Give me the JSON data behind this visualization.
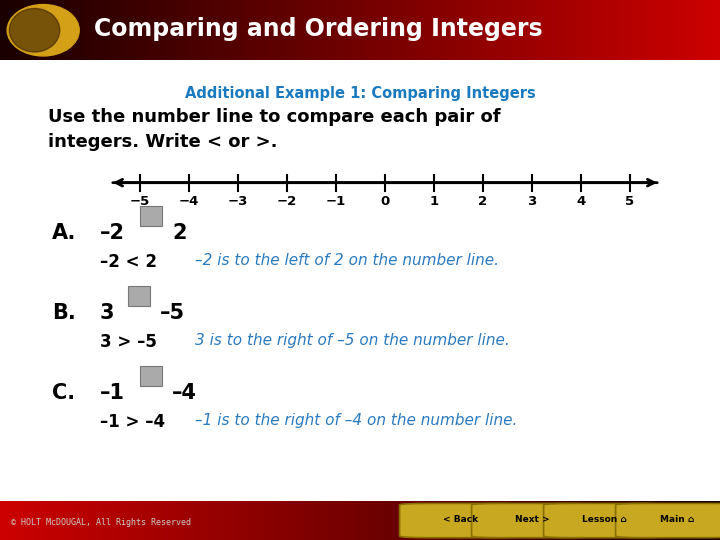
{
  "title": "Comparing and Ordering Integers",
  "subtitle": "Additional Example 1: Comparing Integers",
  "subtitle_color": "#1a7abf",
  "instruction_line1": "Use the number line to compare each pair of",
  "instruction_line2": "integers. Write < or >.",
  "background_color": "#f0f0f0",
  "header_bg_left": "#1a0000",
  "header_bg_right": "#cc0000",
  "header_text_color": "#ffffff",
  "header_circle_color": "#d4a017",
  "number_line_ticks": [
    -5,
    -4,
    -3,
    -2,
    -1,
    0,
    1,
    2,
    3,
    4,
    5
  ],
  "footer_text": "© HOLT McDOUGAL, All Rights Reserved",
  "button_labels": [
    "< Back",
    "Next >",
    "Lesson",
    "Main"
  ],
  "button_color": "#c8a820",
  "answer_color": "#000000",
  "explanation_color": "#2a7abf"
}
